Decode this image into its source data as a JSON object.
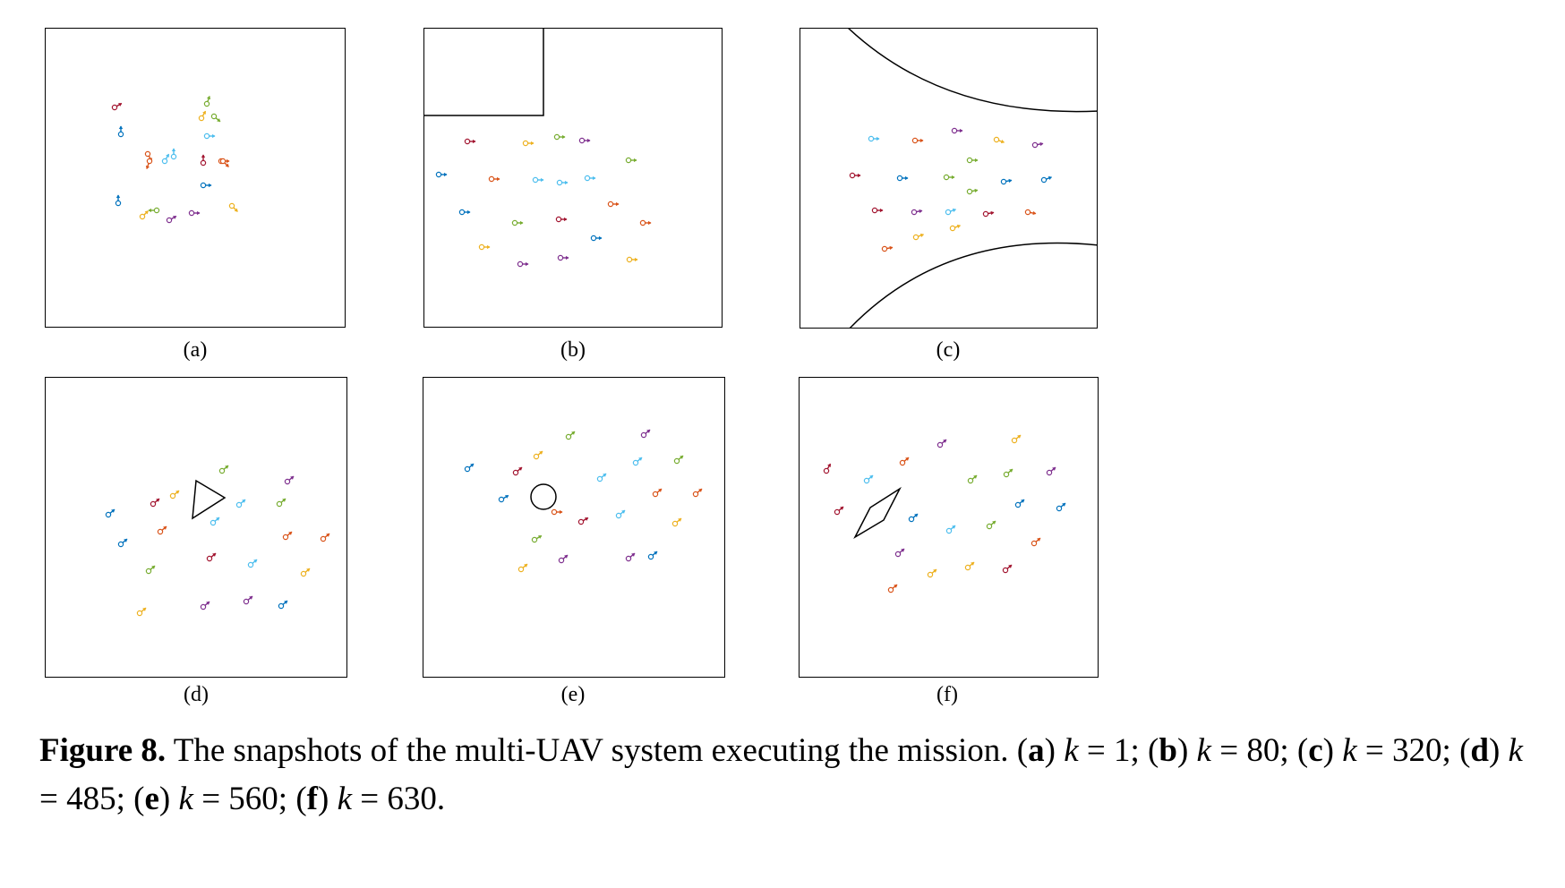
{
  "figure": {
    "label": "Figure 8.",
    "text": "The snapshots of the multi-UAV system executing the mission.",
    "items": [
      {
        "letter": "a",
        "k": "1",
        "sep": ";"
      },
      {
        "letter": "b",
        "k": "80",
        "sep": ";"
      },
      {
        "letter": "c",
        "k": "320",
        "sep": ";"
      },
      {
        "letter": "d",
        "k": "485",
        "sep": ";"
      },
      {
        "letter": "e",
        "k": "560",
        "sep": ";"
      },
      {
        "letter": "f",
        "k": "630",
        "sep": "."
      }
    ],
    "variable": "k",
    "equals": "="
  },
  "panels": [
    {
      "id": "a",
      "label": "(a)",
      "obstacle": "none",
      "heading": "random"
    },
    {
      "id": "b",
      "label": "(b)",
      "obstacle": "rectangle-top-left",
      "heading": "right"
    },
    {
      "id": "c",
      "label": "(c)",
      "obstacle": "curved-corridor",
      "heading": "right"
    },
    {
      "id": "d",
      "label": "(d)",
      "obstacle": "triangle",
      "heading": "up-right"
    },
    {
      "id": "e",
      "label": "(e)",
      "obstacle": "circle",
      "heading": "up-right"
    },
    {
      "id": "f",
      "label": "(f)",
      "obstacle": "parallelogram",
      "heading": "up-right"
    }
  ],
  "uav_colors": [
    "#0072BD",
    "#D95319",
    "#EDB120",
    "#7E2F8E",
    "#77AC30",
    "#4DBEEE",
    "#A2142F"
  ]
}
